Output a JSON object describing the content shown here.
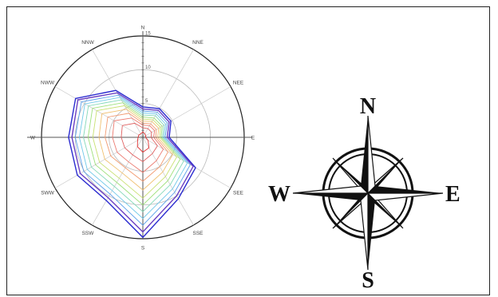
{
  "chart_data": {
    "type": "radar",
    "directions": [
      "N",
      "NNE",
      "NEE",
      "E",
      "SEE",
      "SSE",
      "S",
      "SSW",
      "SWW",
      "W",
      "NWW",
      "NNW"
    ],
    "rmax": 15,
    "radial_ticks": [
      5,
      10,
      15
    ],
    "series": [
      {
        "color": "#2b2bd0",
        "values": [
          4.5,
          4.9,
          4.8,
          3.9,
          9.0,
          10.5,
          14.8,
          10.8,
          11.2,
          11.0,
          11.5,
          8.0
        ]
      },
      {
        "color": "#6a3fc2",
        "values": [
          4.2,
          4.6,
          4.5,
          3.6,
          8.6,
          10.0,
          14.0,
          10.3,
          10.7,
          10.5,
          11.1,
          7.6
        ]
      },
      {
        "color": "#5aa0ea",
        "values": [
          3.9,
          4.3,
          4.2,
          3.3,
          8.1,
          9.4,
          13.0,
          9.7,
          10.1,
          10.0,
          10.5,
          7.2
        ]
      },
      {
        "color": "#70c8e8",
        "values": [
          3.6,
          4.0,
          3.9,
          3.1,
          7.6,
          8.8,
          12.0,
          9.1,
          9.5,
          9.4,
          9.9,
          6.8
        ]
      },
      {
        "color": "#82d8b8",
        "values": [
          3.3,
          3.7,
          3.6,
          2.9,
          7.0,
          8.1,
          11.0,
          8.4,
          8.8,
          8.8,
          9.3,
          6.4
        ]
      },
      {
        "color": "#9de07a",
        "values": [
          3.0,
          3.3,
          3.3,
          2.7,
          6.4,
          7.4,
          10.0,
          7.7,
          8.1,
          8.1,
          8.6,
          5.9
        ]
      },
      {
        "color": "#c8e070",
        "values": [
          2.7,
          3.0,
          3.0,
          2.5,
          5.8,
          6.7,
          9.0,
          7.0,
          7.4,
          7.4,
          7.9,
          5.4
        ]
      },
      {
        "color": "#f0c070",
        "values": [
          2.4,
          2.7,
          2.7,
          2.2,
          5.1,
          5.9,
          7.8,
          6.1,
          6.5,
          6.5,
          7.0,
          4.8
        ]
      },
      {
        "color": "#f29a70",
        "values": [
          2.1,
          2.3,
          2.3,
          1.9,
          4.3,
          5.0,
          6.5,
          5.2,
          5.5,
          5.6,
          6.0,
          4.1
        ]
      },
      {
        "color": "#ec7a70",
        "values": [
          1.8,
          2.0,
          2.0,
          1.6,
          3.5,
          4.0,
          5.2,
          4.2,
          4.4,
          4.5,
          4.9,
          3.3
        ]
      },
      {
        "color": "#e06060",
        "values": [
          1.4,
          1.5,
          1.5,
          1.2,
          2.5,
          2.8,
          3.6,
          3.0,
          3.1,
          3.2,
          3.5,
          2.4
        ]
      },
      {
        "color": "#e03030",
        "values": [
          0.8,
          0.6,
          0.5,
          0.4,
          0.9,
          1.8,
          2.2,
          1.6,
          0.9,
          0.7,
          0.7,
          0.6
        ]
      }
    ],
    "grid": true
  },
  "compass": {
    "north": "N",
    "south": "S",
    "east": "E",
    "west": "W"
  }
}
